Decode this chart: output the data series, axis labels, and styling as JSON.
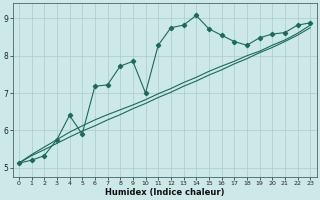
{
  "xlabel": "Humidex (Indice chaleur)",
  "bg_color": "#cce8e8",
  "grid_color": "#aacccc",
  "line_color": "#1a6b5a",
  "xlim": [
    -0.5,
    23.5
  ],
  "ylim": [
    4.75,
    9.4
  ],
  "xticks": [
    0,
    1,
    2,
    3,
    4,
    5,
    6,
    7,
    8,
    9,
    10,
    11,
    12,
    13,
    14,
    15,
    16,
    17,
    18,
    19,
    20,
    21,
    22,
    23
  ],
  "yticks": [
    5,
    6,
    7,
    8,
    9
  ],
  "x": [
    0,
    1,
    2,
    3,
    4,
    5,
    6,
    7,
    8,
    9,
    10,
    11,
    12,
    13,
    14,
    15,
    16,
    17,
    18,
    19,
    20,
    21,
    22,
    23
  ],
  "line_marker_y": [
    5.12,
    5.2,
    5.32,
    5.75,
    6.4,
    5.9,
    7.18,
    7.22,
    7.72,
    7.85,
    7.0,
    8.28,
    8.75,
    8.82,
    9.08,
    8.72,
    8.55,
    8.38,
    8.28,
    8.48,
    8.58,
    8.62,
    8.82,
    8.88
  ],
  "line_straight1_y": [
    5.12,
    5.35,
    5.55,
    5.75,
    5.95,
    6.12,
    6.28,
    6.42,
    6.55,
    6.68,
    6.82,
    6.98,
    7.12,
    7.28,
    7.42,
    7.58,
    7.72,
    7.85,
    8.0,
    8.12,
    8.28,
    8.42,
    8.6,
    8.82
  ],
  "line_straight2_y": [
    5.12,
    5.32,
    5.48,
    5.65,
    5.82,
    5.98,
    6.12,
    6.28,
    6.42,
    6.58,
    6.72,
    6.88,
    7.02,
    7.18,
    7.32,
    7.48,
    7.62,
    7.78,
    7.92,
    8.08,
    8.22,
    8.38,
    8.55,
    8.75
  ]
}
